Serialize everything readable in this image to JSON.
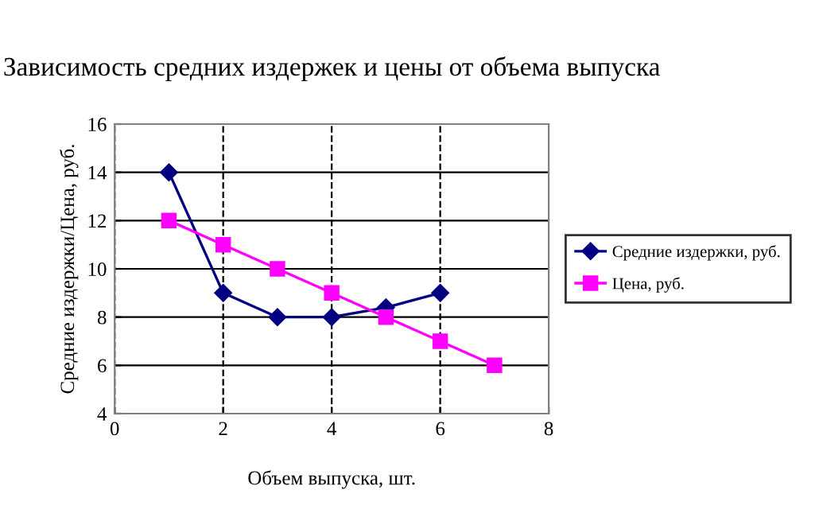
{
  "chart_data": {
    "type": "line",
    "title": "Зависимость средних издержек и цены от объема выпуска",
    "xlabel": "Объем выпуска, шт.",
    "ylabel": "Средние издержки/Цена, руб.",
    "series": [
      {
        "name": "Средние издержки, руб.",
        "color": "#000080",
        "marker": "diamond",
        "x": [
          1,
          2,
          3,
          4,
          5,
          6
        ],
        "values": [
          14,
          9,
          8,
          8,
          8.4,
          9
        ]
      },
      {
        "name": "Цена, руб.",
        "color": "#ff00ff",
        "marker": "square",
        "x": [
          1,
          2,
          3,
          4,
          5,
          6,
          7
        ],
        "values": [
          12,
          11,
          10,
          9,
          8,
          7,
          6
        ]
      }
    ],
    "xlim": [
      0,
      8
    ],
    "xticks": [
      0,
      2,
      4,
      6,
      8
    ],
    "ylim": [
      4,
      16
    ],
    "yticks": [
      4,
      6,
      8,
      10,
      12,
      14,
      16
    ],
    "grid": true,
    "legend": "right",
    "line_style": "solid"
  }
}
